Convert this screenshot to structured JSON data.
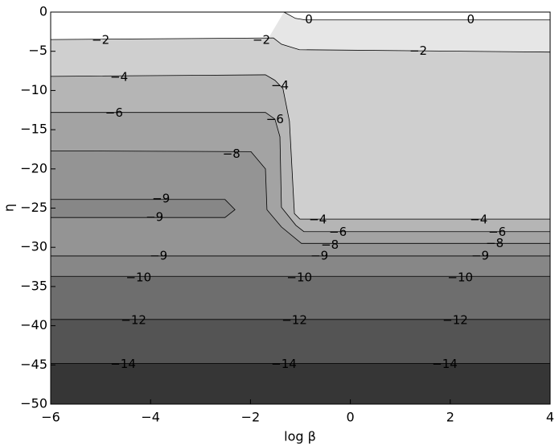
{
  "chart_data": {
    "type": "contour",
    "xlabel": "log β",
    "ylabel": "η",
    "xlim": [
      -6,
      4
    ],
    "ylim": [
      -50,
      0
    ],
    "xticks": [
      {
        "value": -6,
        "label": "−6"
      },
      {
        "value": -4,
        "label": "−4"
      },
      {
        "value": -2,
        "label": "−2"
      },
      0,
      2,
      4
    ],
    "yticks": [
      0,
      {
        "value": -5,
        "label": "−5"
      },
      {
        "value": -10,
        "label": "−10"
      },
      {
        "value": -15,
        "label": "−15"
      },
      {
        "value": -20,
        "label": "−20"
      },
      {
        "value": -25,
        "label": "−25"
      },
      {
        "value": -30,
        "label": "−30"
      },
      {
        "value": -35,
        "label": "−35"
      },
      {
        "value": -40,
        "label": "−40"
      },
      {
        "value": -45,
        "label": "−45"
      },
      {
        "value": -50,
        "label": "−50"
      }
    ],
    "background": "#ffffff",
    "line_color": "#000000",
    "contours": [
      {
        "level": 0,
        "label": "0",
        "color": "#e6e6e6",
        "paths": [
          {
            "x": [
              -1.33,
              -1.1,
              -0.9,
              4
            ],
            "y": [
              0,
              -0.8,
              -1.0,
              -1.0
            ]
          }
        ],
        "label_x": [
          -0.83,
          2.41
        ],
        "label_y": [
          -1.0,
          -1.0
        ]
      },
      {
        "level": -2,
        "label": "−2",
        "color": "#cfcfcf",
        "paths": [
          {
            "x": [
              -6,
              -1.54,
              -1.38,
              -1.02,
              4
            ],
            "y": [
              -3.5,
              -3.3,
              -4.1,
              -4.8,
              -5.1
            ]
          }
        ],
        "label_x": [
          -5.0,
          -1.78,
          1.36
        ],
        "label_y": [
          -3.6,
          -3.6,
          -5.0
        ]
      },
      {
        "level": -4,
        "label": "−4",
        "color": "#b5b5b5",
        "paths": [
          {
            "x": [
              -6,
              -1.7,
              -1.51,
              -1.35,
              -1.22,
              -1.12,
              -1.01,
              4
            ],
            "y": [
              -8.2,
              -8.0,
              -8.7,
              -9.75,
              -13.9,
              -25.7,
              -26.4,
              -26.4
            ]
          }
        ],
        "label_x": [
          -4.63,
          -1.41,
          -0.65,
          2.57
        ],
        "label_y": [
          -8.3,
          -9.4,
          -26.5,
          -26.5
        ]
      },
      {
        "level": -6,
        "label": "−6",
        "color": "#a3a3a3",
        "paths": [
          {
            "x": [
              -6,
              -1.7,
              -1.51,
              -1.41,
              -1.38,
              -1.09,
              -0.93,
              4
            ],
            "y": [
              -12.8,
              -12.8,
              -13.65,
              -15.9,
              -24.9,
              -27.2,
              -28.0,
              -28.0
            ]
          }
        ],
        "label_x": [
          -4.73,
          -1.51,
          -0.25,
          2.94
        ],
        "label_y": [
          -12.9,
          -13.7,
          -28.1,
          -28.1
        ]
      },
      {
        "level": -8,
        "label": "−8",
        "color": "#949494",
        "paths": [
          {
            "x": [
              -6,
              -1.99,
              -1.7,
              -1.67,
              -1.38,
              -0.98,
              4
            ],
            "y": [
              -17.7,
              -17.8,
              -20.0,
              -25.2,
              -27.4,
              -29.5,
              -29.5
            ]
          }
        ],
        "label_x": [
          -2.38,
          -0.41,
          2.89
        ],
        "label_y": [
          -18.1,
          -29.7,
          -29.5
        ]
      },
      {
        "level": -9,
        "label": "−9",
        "color": "#878787",
        "paths": [
          {
            "x": [
              -6,
              4
            ],
            "y": [
              -31.1,
              -31.1
            ]
          },
          {
            "x": [
              -6,
              -2.51,
              -2.31,
              -2.51,
              -6
            ],
            "y": [
              -23.9,
              -23.9,
              -25.2,
              -26.2,
              -26.2
            ],
            "closed": true
          }
        ],
        "label_x": [
          -3.79,
          -3.92,
          -3.84,
          -0.62,
          2.6
        ],
        "label_y": [
          -23.8,
          -26.2,
          -31.1,
          -31.1,
          -31.1
        ]
      },
      {
        "level": -10,
        "label": "−10",
        "color": "#6e6e6e",
        "paths": [
          {
            "x": [
              -6,
              4
            ],
            "y": [
              -33.7,
              -33.7
            ]
          }
        ],
        "label_x": [
          -4.24,
          -1.02,
          2.2
        ],
        "label_y": [
          -33.9,
          -33.9,
          -33.9
        ]
      },
      {
        "level": -12,
        "label": "−12",
        "color": "#545454",
        "paths": [
          {
            "x": [
              -6,
              4
            ],
            "y": [
              -39.2,
              -39.2
            ]
          }
        ],
        "label_x": [
          -4.34,
          -1.12,
          2.1
        ],
        "label_y": [
          -39.3,
          -39.3,
          -39.3
        ]
      },
      {
        "level": -14,
        "label": "−14",
        "color": "#363636",
        "paths": [
          {
            "x": [
              -6,
              4
            ],
            "y": [
              -44.8,
              -44.8
            ]
          }
        ],
        "label_x": [
          -4.55,
          -1.33,
          1.89
        ],
        "label_y": [
          -44.9,
          -44.9,
          -44.9
        ]
      }
    ]
  }
}
